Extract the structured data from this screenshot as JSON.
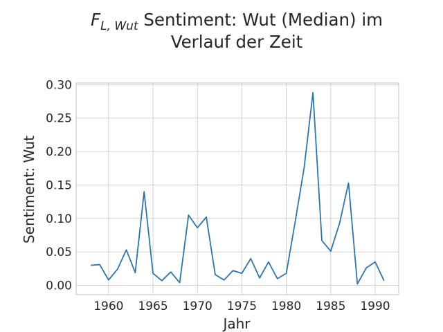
{
  "chart_data": {
    "type": "line",
    "title_math_main": "F",
    "title_math_sub": "L, Wut",
    "title_line1_rest": " Sentiment: Wut (Median) im",
    "title_line2": "Verlauf der Zeit",
    "xlabel": "Jahr",
    "ylabel": "Sentiment: Wut",
    "xlim": [
      1956.35,
      1992.65
    ],
    "ylim": [
      -0.0139,
      0.3024
    ],
    "xticks": [
      1960,
      1965,
      1970,
      1975,
      1980,
      1985,
      1990
    ],
    "xtick_labels": [
      "1960",
      "1965",
      "1970",
      "1975",
      "1980",
      "1985",
      "1990"
    ],
    "yticks": [
      0.0,
      0.05,
      0.1,
      0.15,
      0.2,
      0.25,
      0.3
    ],
    "ytick_labels": [
      "0.00",
      "0.05",
      "0.10",
      "0.15",
      "0.20",
      "0.25",
      "0.30"
    ],
    "grid": true,
    "line_color": "#2d74a8",
    "x": [
      1958,
      1959,
      1960,
      1961,
      1962,
      1963,
      1964,
      1965,
      1966,
      1967,
      1968,
      1969,
      1970,
      1971,
      1972,
      1973,
      1974,
      1975,
      1976,
      1977,
      1978,
      1979,
      1980,
      1981,
      1982,
      1983,
      1984,
      1985,
      1986,
      1987,
      1988,
      1989,
      1990,
      1991
    ],
    "y": [
      0.03,
      0.031,
      0.008,
      0.024,
      0.053,
      0.019,
      0.14,
      0.018,
      0.007,
      0.02,
      0.004,
      0.105,
      0.086,
      0.102,
      0.016,
      0.008,
      0.022,
      0.018,
      0.04,
      0.011,
      0.035,
      0.01,
      0.018,
      0.095,
      0.175,
      0.288,
      0.067,
      0.051,
      0.093,
      0.153,
      0.002,
      0.026,
      0.035,
      0.007
    ]
  }
}
